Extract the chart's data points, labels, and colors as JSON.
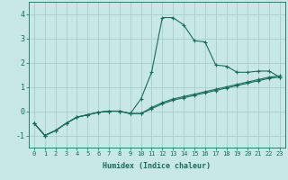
{
  "xlabel": "Humidex (Indice chaleur)",
  "bg_color": "#c8e8e8",
  "grid_color": "#aacccc",
  "line_color": "#1a6b5a",
  "xlim": [
    -0.5,
    23.5
  ],
  "ylim": [
    -1.5,
    4.5
  ],
  "xticks": [
    0,
    1,
    2,
    3,
    4,
    5,
    6,
    7,
    8,
    9,
    10,
    11,
    12,
    13,
    14,
    15,
    16,
    17,
    18,
    19,
    20,
    21,
    22,
    23
  ],
  "yticks": [
    -1,
    0,
    1,
    2,
    3,
    4
  ],
  "series1_x": [
    0,
    1,
    2,
    3,
    4,
    5,
    6,
    7,
    8,
    9,
    10,
    11,
    12,
    13,
    14,
    15,
    16,
    17,
    18,
    19,
    20,
    21,
    22,
    23
  ],
  "series1_y": [
    -0.5,
    -1.0,
    -0.8,
    -0.5,
    -0.25,
    -0.15,
    -0.05,
    0.0,
    0.0,
    -0.1,
    0.5,
    1.6,
    3.85,
    3.85,
    3.55,
    2.9,
    2.85,
    1.9,
    1.85,
    1.6,
    1.6,
    1.65,
    1.65,
    1.4
  ],
  "series2_x": [
    0,
    1,
    2,
    3,
    4,
    5,
    6,
    7,
    8,
    9,
    10,
    11,
    12,
    13,
    14,
    15,
    16,
    17,
    18,
    19,
    20,
    21,
    22,
    23
  ],
  "series2_y": [
    -0.5,
    -1.0,
    -0.8,
    -0.5,
    -0.25,
    -0.15,
    -0.05,
    0.0,
    0.0,
    -0.1,
    -0.1,
    0.1,
    0.3,
    0.45,
    0.55,
    0.65,
    0.75,
    0.85,
    0.95,
    1.05,
    1.15,
    1.25,
    1.35,
    1.4
  ],
  "series3_x": [
    0,
    1,
    2,
    3,
    4,
    5,
    6,
    7,
    8,
    9,
    10,
    11,
    12,
    13,
    14,
    15,
    16,
    17,
    18,
    19,
    20,
    21,
    22,
    23
  ],
  "series3_y": [
    -0.5,
    -1.0,
    -0.8,
    -0.5,
    -0.25,
    -0.15,
    -0.05,
    0.0,
    0.0,
    -0.1,
    -0.1,
    0.15,
    0.35,
    0.5,
    0.6,
    0.7,
    0.8,
    0.9,
    1.0,
    1.1,
    1.2,
    1.3,
    1.4,
    1.45
  ]
}
